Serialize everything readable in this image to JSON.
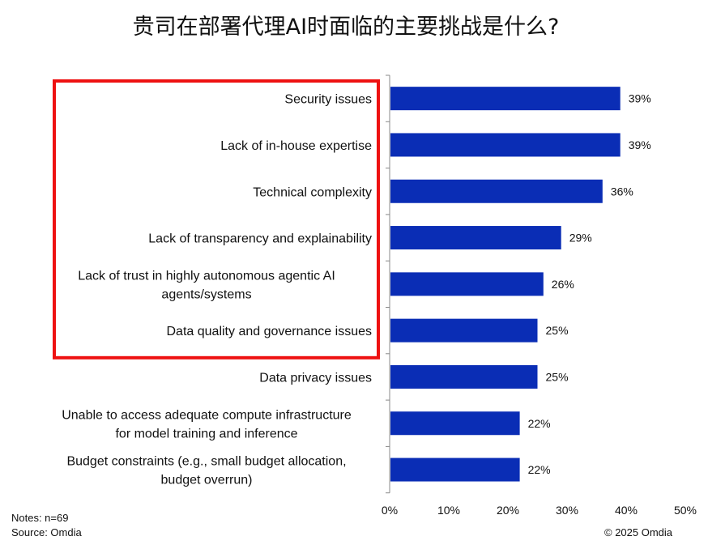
{
  "chart_data": {
    "type": "bar",
    "orientation": "horizontal",
    "title": "贵司在部署代理AI时面临的主要挑战是什么?",
    "categories": [
      [
        "Security issues"
      ],
      [
        "Lack of in-house expertise"
      ],
      [
        "Technical complexity"
      ],
      [
        "Lack of transparency and explainability"
      ],
      [
        "Lack of trust in highly autonomous agentic AI",
        "agents/systems"
      ],
      [
        "Data quality and governance issues"
      ],
      [
        "Data privacy issues"
      ],
      [
        "Unable to access adequate compute infrastructure",
        "for model training and inference"
      ],
      [
        "Budget constraints (e.g., small budget allocation,",
        "budget overrun)"
      ]
    ],
    "values": [
      39,
      39,
      36,
      29,
      26,
      25,
      25,
      22,
      22
    ],
    "value_labels": [
      "39%",
      "39%",
      "36%",
      "29%",
      "26%",
      "25%",
      "25%",
      "22%",
      "22%"
    ],
    "xlim": [
      0,
      50
    ],
    "x_ticks": [
      "0%",
      "10%",
      "20%",
      "30%",
      "40%",
      "50%"
    ],
    "bar_color": "#0A2DB5",
    "highlight_color": "#EE1111",
    "highlighted_categories": [
      0,
      5
    ],
    "grid": false
  },
  "footer": {
    "notes": "Notes: n=69",
    "source": "Source: Omdia",
    "copyright": "© 2025 Omdia"
  }
}
